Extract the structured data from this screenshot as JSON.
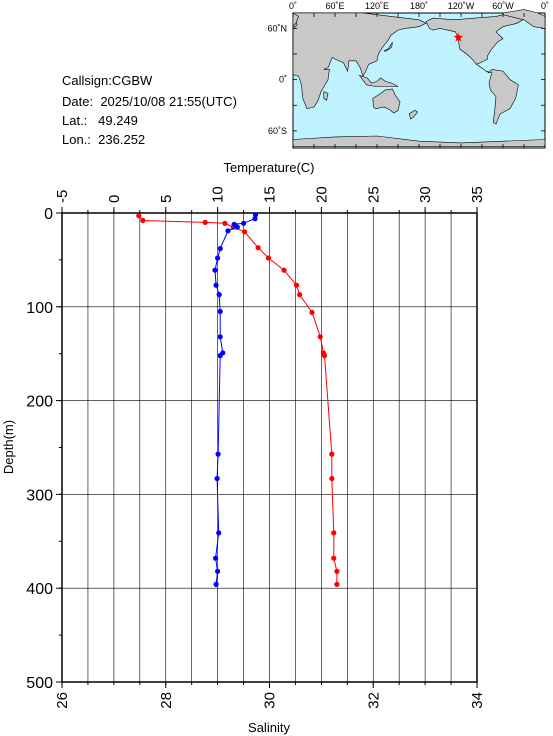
{
  "station": {
    "callsign_label": "Callsign:",
    "callsign": "CGBW",
    "date_label": "Date:",
    "date": "2025/10/08 21:55(UTC)",
    "lat_label": "Lat.:",
    "lat": "49.249",
    "lon_label": "Lon.:",
    "lon": "236.252"
  },
  "map": {
    "top_labels": [
      "0˚",
      "60˚E",
      "120˚E",
      "180˚",
      "120˚W",
      "60˚W",
      "0˚"
    ],
    "lat_labels": [
      "60˚N",
      "0˚",
      "60˚S"
    ],
    "colors": {
      "ocean": "#bff3ff",
      "land": "#c8c8c8",
      "marker": "#ff0000"
    },
    "marker": {
      "lon_e": 236.252,
      "lat_n": 49.249,
      "symbol": "star"
    }
  },
  "chart_data": {
    "type": "line",
    "title": "",
    "xlabel_top": "Temperature(C)",
    "xlabel_bottom": "Salinity",
    "ylabel": "Depth(m)",
    "temperature_range": [
      -5,
      35
    ],
    "temperature_ticks": [
      "-5",
      "0",
      "5",
      "10",
      "15",
      "20",
      "25",
      "30",
      "35"
    ],
    "salinity_range": [
      26,
      34
    ],
    "salinity_ticks": [
      "26",
      "28",
      "30",
      "32",
      "34"
    ],
    "depth_range": [
      0,
      500
    ],
    "depth_ticks": [
      "0",
      "100",
      "200",
      "300",
      "400",
      "500"
    ],
    "grid": true,
    "series": [
      {
        "variable": "temperature",
        "axis": "top",
        "color": "#ff0000",
        "points": [
          [
            2.4,
            3
          ],
          [
            2.8,
            8
          ],
          [
            8.8,
            10
          ],
          [
            10.7,
            11
          ],
          [
            11.5,
            15
          ],
          [
            12.6,
            20
          ],
          [
            13.9,
            37
          ],
          [
            14.9,
            48
          ],
          [
            16.4,
            61
          ],
          [
            17.6,
            77
          ],
          [
            17.9,
            87
          ],
          [
            19.1,
            106
          ],
          [
            19.9,
            132
          ],
          [
            20.2,
            149
          ],
          [
            20.3,
            152
          ],
          [
            21.0,
            257
          ],
          [
            21.0,
            283
          ],
          [
            21.2,
            341
          ],
          [
            21.2,
            368
          ],
          [
            21.5,
            382
          ],
          [
            21.5,
            396
          ]
        ]
      },
      {
        "variable": "salinity",
        "axis": "bottom",
        "color": "#0000ff",
        "points": [
          [
            29.73,
            2
          ],
          [
            29.72,
            6
          ],
          [
            29.5,
            11
          ],
          [
            29.32,
            12
          ],
          [
            29.38,
            15
          ],
          [
            29.2,
            19
          ],
          [
            29.05,
            38
          ],
          [
            29.0,
            48
          ],
          [
            28.95,
            61
          ],
          [
            28.97,
            77
          ],
          [
            29.03,
            87
          ],
          [
            29.05,
            105
          ],
          [
            29.05,
            132
          ],
          [
            29.1,
            149
          ],
          [
            29.05,
            152
          ],
          [
            29.01,
            257
          ],
          [
            28.99,
            283
          ],
          [
            29.02,
            341
          ],
          [
            28.96,
            368
          ],
          [
            29.0,
            382
          ],
          [
            28.97,
            396
          ]
        ]
      }
    ]
  }
}
